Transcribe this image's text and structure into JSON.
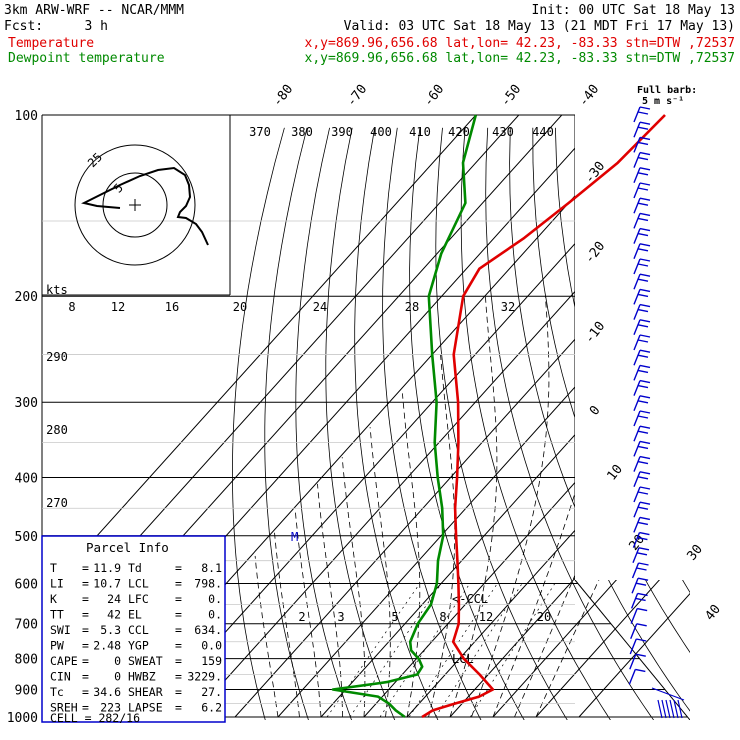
{
  "header": {
    "model": "3km ARW-WRF -- NCAR/MMM",
    "init": "Init: 00 UTC Sat 18 May 13",
    "fcst_label": "Fcst:",
    "fcst_value": "3 h",
    "valid": "Valid: 03 UTC Sat 18 May 13 (21 MDT Fri 17 May 13)",
    "temp_label": "Temperature",
    "temp_info": "x,y=869.96,656.68   lat,lon= 42.23, -83.33   stn=DTW ,72537",
    "dew_label": "Dewpoint temperature",
    "dew_info": "x,y=869.96,656.68   lat,lon= 42.23, -83.33   stn=DTW ,72537"
  },
  "colors": {
    "temperature": "#e00000",
    "dewpoint": "#008a00",
    "parcel_box": "#0000cc",
    "winds": "#0000cc",
    "grid": "#000000"
  },
  "chart_data": {
    "type": "line",
    "title": "",
    "ylabel_units": "hPa",
    "y_scale": "log",
    "ylim": [
      1000,
      100
    ],
    "pressure_labels": [
      "100",
      "200",
      "300",
      "400",
      "500",
      "600",
      "700",
      "800",
      "900",
      "1000"
    ],
    "isotherm_labels": [
      "-80",
      "-70",
      "-60",
      "-50",
      "-40",
      "-30",
      "-20",
      "-10",
      "0",
      "10",
      "20",
      "30",
      "40"
    ],
    "theta_labels": [
      "370",
      "380",
      "390",
      "400",
      "410",
      "420",
      "430",
      "440"
    ],
    "mixing_ratio_labels": [
      "2",
      "3",
      "5",
      "8",
      "12",
      "20"
    ],
    "lower_theta_labels": [
      "290",
      "280",
      "270"
    ],
    "series": [
      {
        "name": "Temperature",
        "points": [
          {
            "p": 1000,
            "t": 13.5
          },
          {
            "p": 975,
            "t": 14.6
          },
          {
            "p": 950,
            "t": 18.3
          },
          {
            "p": 925,
            "t": 22.5
          },
          {
            "p": 900,
            "t": 24.2
          },
          {
            "p": 850,
            "t": 18.0
          },
          {
            "p": 800,
            "t": 11.0
          },
          {
            "p": 750,
            "t": 5.0
          },
          {
            "p": 700,
            "t": 2.5
          },
          {
            "p": 650,
            "t": -1.5
          },
          {
            "p": 600,
            "t": -6.0
          },
          {
            "p": 550,
            "t": -11.0
          },
          {
            "p": 500,
            "t": -16.5
          },
          {
            "p": 450,
            "t": -22.5
          },
          {
            "p": 400,
            "t": -28.5
          },
          {
            "p": 350,
            "t": -35.5
          },
          {
            "p": 300,
            "t": -44.0
          },
          {
            "p": 250,
            "t": -55.0
          },
          {
            "p": 200,
            "t": -65.0
          },
          {
            "p": 180,
            "t": -67.0
          },
          {
            "p": 160,
            "t": -63.0
          },
          {
            "p": 140,
            "t": -60.0
          },
          {
            "p": 120,
            "t": -57.0
          },
          {
            "p": 100,
            "t": -56.0
          }
        ]
      },
      {
        "name": "Dewpoint temperature",
        "points": [
          {
            "p": 1000,
            "t": 9.5
          },
          {
            "p": 975,
            "t": 6.0
          },
          {
            "p": 950,
            "t": 3.0
          },
          {
            "p": 925,
            "t": -1.0
          },
          {
            "p": 900,
            "t": -13.0
          },
          {
            "p": 875,
            "t": -2.0
          },
          {
            "p": 850,
            "t": 3.5
          },
          {
            "p": 825,
            "t": 3.0
          },
          {
            "p": 800,
            "t": 0.5
          },
          {
            "p": 775,
            "t": -3.0
          },
          {
            "p": 750,
            "t": -5.0
          },
          {
            "p": 700,
            "t": -7.0
          },
          {
            "p": 650,
            "t": -8.0
          },
          {
            "p": 600,
            "t": -11.0
          },
          {
            "p": 550,
            "t": -15.5
          },
          {
            "p": 500,
            "t": -19.5
          },
          {
            "p": 450,
            "t": -25.5
          },
          {
            "p": 400,
            "t": -33.0
          },
          {
            "p": 350,
            "t": -41.0
          },
          {
            "p": 300,
            "t": -49.0
          },
          {
            "p": 250,
            "t": -60.0
          },
          {
            "p": 200,
            "t": -73.0
          },
          {
            "p": 170,
            "t": -79.0
          },
          {
            "p": 140,
            "t": -84.0
          },
          {
            "p": 120,
            "t": -93.0
          },
          {
            "p": 100,
            "t": -100.0
          }
        ]
      }
    ]
  },
  "hodograph": {
    "ring_labels": [
      "25",
      "5"
    ],
    "kts_label": "kts"
  },
  "wind_legend": {
    "line1": "Full barb:",
    "line2": "5 m s⁻¹"
  },
  "markers": {
    "ccl": "<-CCL",
    "lcl": "LCL",
    "m": "M"
  },
  "parcel_info": {
    "title": "Parcel Info",
    "rows": [
      {
        "l1": "T",
        "v1": "11.9",
        "l2": "Td",
        "v2": "8.1"
      },
      {
        "l1": "LI",
        "v1": "10.7",
        "l2": "LCL",
        "v2": "798."
      },
      {
        "l1": "K",
        "v1": "24",
        "l2": "LFC",
        "v2": "0."
      },
      {
        "l1": "TT",
        "v1": "42",
        "l2": "EL",
        "v2": "0."
      },
      {
        "l1": "SWI",
        "v1": "5.3",
        "l2": "CCL",
        "v2": "634."
      },
      {
        "l1": "PW",
        "v1": "2.48",
        "l2": "YGP",
        "v2": "0.0"
      },
      {
        "l1": "CAPE",
        "v1": "0",
        "l2": "SWEAT",
        "v2": "159"
      },
      {
        "l1": "CIN",
        "v1": "0",
        "l2": "HWBZ",
        "v2": "3229."
      },
      {
        "l1": "Tc",
        "v1": "34.6",
        "l2": "SHEAR",
        "v2": "27."
      },
      {
        "l1": "SREH",
        "v1": "223",
        "l2": "LAPSE",
        "v2": "6.2"
      }
    ],
    "cell": "CELL = 282/16"
  }
}
